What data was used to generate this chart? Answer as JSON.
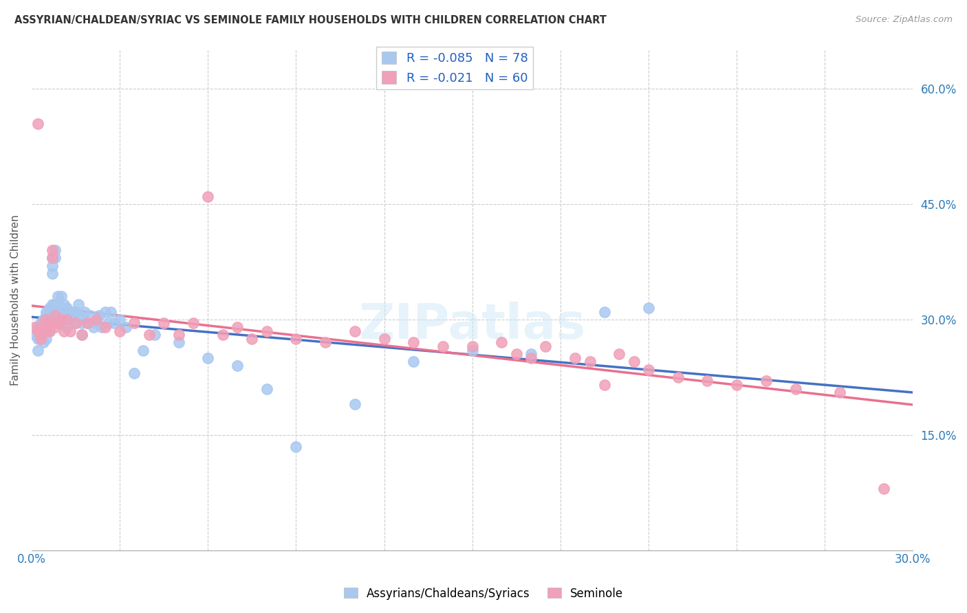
{
  "title": "ASSYRIAN/CHALDEAN/SYRIAC VS SEMINOLE FAMILY HOUSEHOLDS WITH CHILDREN CORRELATION CHART",
  "source": "Source: ZipAtlas.com",
  "ylabel": "Family Households with Children",
  "yticks": [
    0.0,
    0.15,
    0.3,
    0.45,
    0.6
  ],
  "ytick_labels": [
    "",
    "15.0%",
    "30.0%",
    "45.0%",
    "60.0%"
  ],
  "xlim": [
    0.0,
    0.3
  ],
  "ylim": [
    0.0,
    0.65
  ],
  "blue_R": -0.085,
  "blue_N": 78,
  "pink_R": -0.021,
  "pink_N": 60,
  "blue_color": "#A8C8F0",
  "pink_color": "#F0A0B8",
  "blue_line_color": "#4472C4",
  "pink_line_color": "#E87090",
  "legend_text_color": "#2060C0",
  "blue_scatter_x": [
    0.001,
    0.002,
    0.002,
    0.002,
    0.003,
    0.003,
    0.003,
    0.003,
    0.004,
    0.004,
    0.004,
    0.004,
    0.005,
    0.005,
    0.005,
    0.005,
    0.005,
    0.006,
    0.006,
    0.006,
    0.006,
    0.007,
    0.007,
    0.007,
    0.007,
    0.008,
    0.008,
    0.008,
    0.008,
    0.009,
    0.009,
    0.009,
    0.01,
    0.01,
    0.01,
    0.011,
    0.011,
    0.011,
    0.012,
    0.012,
    0.012,
    0.013,
    0.013,
    0.014,
    0.014,
    0.015,
    0.015,
    0.016,
    0.016,
    0.017,
    0.017,
    0.018,
    0.019,
    0.02,
    0.021,
    0.022,
    0.023,
    0.024,
    0.025,
    0.026,
    0.027,
    0.028,
    0.03,
    0.032,
    0.035,
    0.038,
    0.042,
    0.05,
    0.06,
    0.07,
    0.08,
    0.09,
    0.11,
    0.13,
    0.15,
    0.17,
    0.195,
    0.21
  ],
  "blue_scatter_y": [
    0.28,
    0.29,
    0.275,
    0.26,
    0.295,
    0.285,
    0.28,
    0.275,
    0.3,
    0.29,
    0.28,
    0.27,
    0.31,
    0.305,
    0.295,
    0.285,
    0.275,
    0.315,
    0.305,
    0.295,
    0.285,
    0.38,
    0.37,
    0.36,
    0.32,
    0.39,
    0.38,
    0.32,
    0.31,
    0.33,
    0.31,
    0.295,
    0.33,
    0.315,
    0.295,
    0.32,
    0.31,
    0.295,
    0.315,
    0.305,
    0.29,
    0.31,
    0.295,
    0.31,
    0.295,
    0.31,
    0.295,
    0.32,
    0.305,
    0.295,
    0.28,
    0.31,
    0.295,
    0.305,
    0.29,
    0.295,
    0.305,
    0.29,
    0.31,
    0.295,
    0.31,
    0.295,
    0.3,
    0.29,
    0.23,
    0.26,
    0.28,
    0.27,
    0.25,
    0.24,
    0.21,
    0.135,
    0.19,
    0.245,
    0.26,
    0.255,
    0.31,
    0.315
  ],
  "pink_scatter_x": [
    0.001,
    0.002,
    0.002,
    0.003,
    0.003,
    0.004,
    0.004,
    0.005,
    0.005,
    0.006,
    0.006,
    0.007,
    0.007,
    0.008,
    0.008,
    0.009,
    0.01,
    0.011,
    0.012,
    0.013,
    0.015,
    0.017,
    0.019,
    0.022,
    0.025,
    0.03,
    0.035,
    0.04,
    0.045,
    0.05,
    0.055,
    0.06,
    0.065,
    0.07,
    0.075,
    0.08,
    0.09,
    0.1,
    0.11,
    0.12,
    0.13,
    0.14,
    0.15,
    0.16,
    0.165,
    0.17,
    0.175,
    0.185,
    0.19,
    0.195,
    0.2,
    0.205,
    0.21,
    0.22,
    0.23,
    0.24,
    0.25,
    0.26,
    0.275,
    0.29
  ],
  "pink_scatter_y": [
    0.29,
    0.285,
    0.555,
    0.28,
    0.275,
    0.295,
    0.285,
    0.3,
    0.285,
    0.295,
    0.285,
    0.39,
    0.38,
    0.305,
    0.29,
    0.295,
    0.3,
    0.285,
    0.3,
    0.285,
    0.295,
    0.28,
    0.295,
    0.3,
    0.29,
    0.285,
    0.295,
    0.28,
    0.295,
    0.28,
    0.295,
    0.46,
    0.28,
    0.29,
    0.275,
    0.285,
    0.275,
    0.27,
    0.285,
    0.275,
    0.27,
    0.265,
    0.265,
    0.27,
    0.255,
    0.25,
    0.265,
    0.25,
    0.245,
    0.215,
    0.255,
    0.245,
    0.235,
    0.225,
    0.22,
    0.215,
    0.22,
    0.21,
    0.205,
    0.08
  ]
}
